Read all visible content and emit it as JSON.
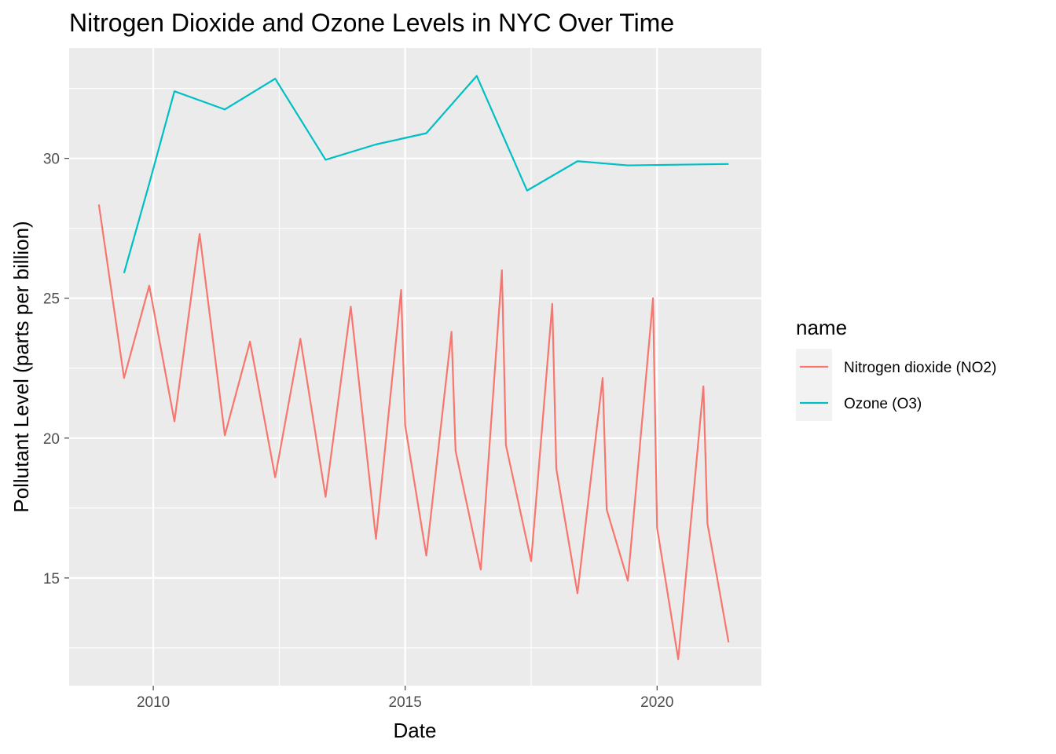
{
  "chart_data": {
    "type": "line",
    "title": "Nitrogen Dioxide and Ozone Levels in NYC Over Time",
    "xlabel": "Date",
    "ylabel": "Pollutant Level (parts per billion)",
    "x_ticks": [
      2010,
      2015,
      2020
    ],
    "y_ticks": [
      15,
      20,
      25,
      30
    ],
    "xlim": [
      2008.33,
      2022.07
    ],
    "ylim": [
      11.15,
      33.95
    ],
    "grid": true,
    "legend": {
      "title": "name",
      "position": "right"
    },
    "series": [
      {
        "name": "Nitrogen dioxide (NO2)",
        "color": "#F8766D",
        "points": [
          {
            "x": 2008.92,
            "y": 28.35
          },
          {
            "x": 2009.42,
            "y": 22.15
          },
          {
            "x": 2009.92,
            "y": 25.45
          },
          {
            "x": 2010.42,
            "y": 20.6
          },
          {
            "x": 2010.92,
            "y": 27.3
          },
          {
            "x": 2011.42,
            "y": 20.1
          },
          {
            "x": 2011.92,
            "y": 23.45
          },
          {
            "x": 2012.42,
            "y": 18.6
          },
          {
            "x": 2012.92,
            "y": 23.55
          },
          {
            "x": 2013.42,
            "y": 17.9
          },
          {
            "x": 2013.92,
            "y": 24.7
          },
          {
            "x": 2014.42,
            "y": 16.4
          },
          {
            "x": 2014.92,
            "y": 25.3
          },
          {
            "x": 2015.0,
            "y": 20.45
          },
          {
            "x": 2015.42,
            "y": 15.8
          },
          {
            "x": 2015.92,
            "y": 23.8
          },
          {
            "x": 2016.0,
            "y": 19.55
          },
          {
            "x": 2016.5,
            "y": 15.3
          },
          {
            "x": 2016.92,
            "y": 26.0
          },
          {
            "x": 2017.0,
            "y": 19.75
          },
          {
            "x": 2017.5,
            "y": 15.6
          },
          {
            "x": 2017.92,
            "y": 24.8
          },
          {
            "x": 2018.0,
            "y": 18.9
          },
          {
            "x": 2018.42,
            "y": 14.45
          },
          {
            "x": 2018.92,
            "y": 22.15
          },
          {
            "x": 2019.0,
            "y": 17.45
          },
          {
            "x": 2019.42,
            "y": 14.9
          },
          {
            "x": 2019.92,
            "y": 25.0
          },
          {
            "x": 2020.0,
            "y": 16.8
          },
          {
            "x": 2020.42,
            "y": 12.1
          },
          {
            "x": 2020.92,
            "y": 21.85
          },
          {
            "x": 2021.0,
            "y": 16.95
          },
          {
            "x": 2021.42,
            "y": 12.7
          }
        ]
      },
      {
        "name": "Ozone (O3)",
        "color": "#00BFC4",
        "points": [
          {
            "x": 2009.42,
            "y": 25.9
          },
          {
            "x": 2009.92,
            "y": 29.1
          },
          {
            "x": 2010.42,
            "y": 32.4
          },
          {
            "x": 2011.42,
            "y": 31.75
          },
          {
            "x": 2012.42,
            "y": 32.85
          },
          {
            "x": 2013.42,
            "y": 29.95
          },
          {
            "x": 2014.42,
            "y": 30.5
          },
          {
            "x": 2015.42,
            "y": 30.9
          },
          {
            "x": 2016.42,
            "y": 32.95
          },
          {
            "x": 2017.42,
            "y": 28.85
          },
          {
            "x": 2018.42,
            "y": 29.9
          },
          {
            "x": 2019.42,
            "y": 29.75
          },
          {
            "x": 2021.42,
            "y": 29.8
          }
        ]
      }
    ]
  }
}
